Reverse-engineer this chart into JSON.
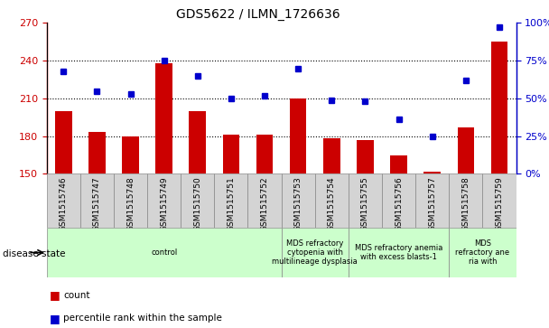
{
  "title": "GDS5622 / ILMN_1726636",
  "samples": [
    "GSM1515746",
    "GSM1515747",
    "GSM1515748",
    "GSM1515749",
    "GSM1515750",
    "GSM1515751",
    "GSM1515752",
    "GSM1515753",
    "GSM1515754",
    "GSM1515755",
    "GSM1515756",
    "GSM1515757",
    "GSM1515758",
    "GSM1515759"
  ],
  "counts": [
    200,
    183,
    180,
    238,
    200,
    181,
    181,
    210,
    178,
    177,
    165,
    152,
    187,
    255
  ],
  "percentile_ranks": [
    68,
    55,
    53,
    75,
    65,
    50,
    52,
    70,
    49,
    48,
    36,
    25,
    62,
    97
  ],
  "ylim_left": [
    150,
    270
  ],
  "ylim_right": [
    0,
    100
  ],
  "yticks_left": [
    150,
    180,
    210,
    240,
    270
  ],
  "yticks_right": [
    0,
    25,
    50,
    75,
    100
  ],
  "bar_color": "#cc0000",
  "dot_color": "#0000cc",
  "plot_bg": "#ffffff",
  "tick_bg": "#d4d4d4",
  "disease_group_color": "#ccffcc",
  "groups": [
    {
      "label": "control",
      "start": 0,
      "end": 7
    },
    {
      "label": "MDS refractory\ncytopenia with\nmultilineage dysplasia",
      "start": 7,
      "end": 9
    },
    {
      "label": "MDS refractory anemia\nwith excess blasts-1",
      "start": 9,
      "end": 12
    },
    {
      "label": "MDS\nrefractory ane\nria with",
      "start": 12,
      "end": 14
    }
  ]
}
